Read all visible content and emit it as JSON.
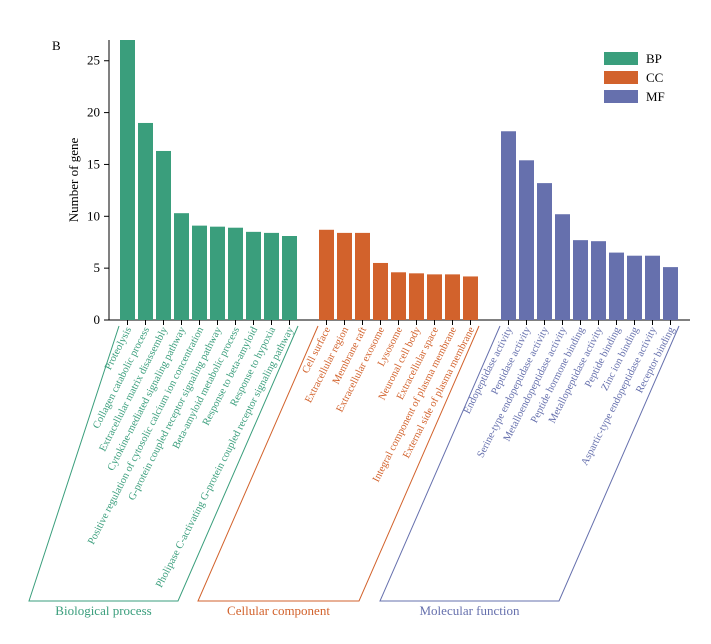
{
  "panel_label": "B",
  "chart_data": {
    "type": "bar",
    "title": "",
    "xlabel": "",
    "ylabel": "Number of gene",
    "ylim": [
      0,
      27
    ],
    "yticks": [
      0,
      5,
      10,
      15,
      20,
      25
    ],
    "grid": false,
    "legend_position": "top-right",
    "series": [
      {
        "name": "BP",
        "group_label": "Biological process",
        "color": "#3a9e7c",
        "categories": [
          "Proteolysis",
          "Collagen catabolic process",
          "Extracellular matrix disassembly",
          "Cytokine-mediated signaling pathway",
          "Positive regulation of cytosolic calcium ion concentration",
          "G-protein coupled receptor signaling pathway",
          "Beta-amyloid metabolic process",
          "Response to beta-amyloid",
          "Response to hypoxia",
          "Pholipase C-activating G-protein coupled receptor signaling pathway"
        ],
        "values": [
          27,
          19,
          16.3,
          10.3,
          9.1,
          9,
          8.9,
          8.5,
          8.4,
          8.1
        ]
      },
      {
        "name": "CC",
        "group_label": "Cellular component",
        "color": "#d2622c",
        "categories": [
          "Cell surface",
          "Extracellular region",
          "Membrane raft",
          "Extracellular exosome",
          "Lysosome",
          "Neuronal cell body",
          "Extracellular space",
          "Integral component of plasma membrane",
          "External side of plasma membrane"
        ],
        "values": [
          8.7,
          8.4,
          8.4,
          5.5,
          4.6,
          4.5,
          4.4,
          4.4,
          4.2
        ]
      },
      {
        "name": "MF",
        "group_label": "Molecular function",
        "color": "#6670ad",
        "categories": [
          "Endopeptidase activity",
          "Peptidase activity",
          "Serine-type endopeptidase activity",
          "Metalloendopeptidase activity",
          "Peptide hormone binding",
          "Metallopeptidase activity",
          "Peptide binding",
          "Zinc ion binding",
          "Aspartic-type endopeptidase activity",
          "Receptor binding"
        ],
        "values": [
          18.2,
          15.4,
          13.2,
          10.2,
          7.7,
          7.6,
          6.5,
          6.2,
          6.2,
          5.1
        ]
      }
    ]
  }
}
